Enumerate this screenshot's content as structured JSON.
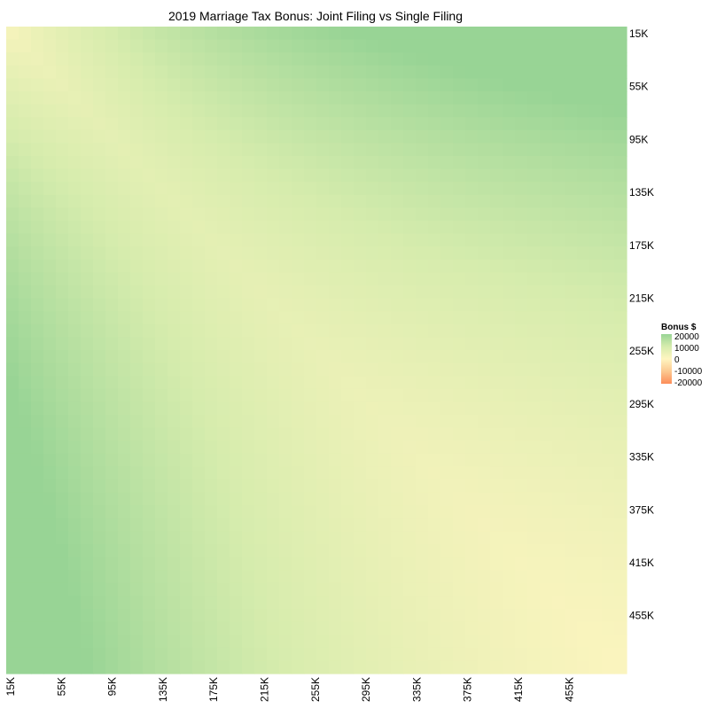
{
  "chart_data": {
    "type": "heatmap",
    "title": "2019 Marriage Tax Bonus: Joint Filing vs Single Filing",
    "x_ticks": [
      "15K",
      "55K",
      "95K",
      "135K",
      "175K",
      "215K",
      "255K",
      "295K",
      "335K",
      "375K",
      "415K",
      "455K"
    ],
    "y_ticks": [
      "15K",
      "55K",
      "95K",
      "135K",
      "175K",
      "215K",
      "255K",
      "295K",
      "335K",
      "375K",
      "415K",
      "455K"
    ],
    "x_range": [
      15000,
      500000
    ],
    "y_range": [
      15000,
      500000
    ],
    "y_axis_position": "right",
    "x_tick_orientation": "vertical",
    "legend": {
      "title": "Bonus $",
      "placement": "right",
      "labels": [
        "20000",
        "10000",
        "0",
        "-10000",
        "-20000"
      ],
      "colors": [
        "#98d495",
        "#d6ecad",
        "#fff5c0",
        "#fcc890",
        "#fc8d59"
      ]
    }
  }
}
